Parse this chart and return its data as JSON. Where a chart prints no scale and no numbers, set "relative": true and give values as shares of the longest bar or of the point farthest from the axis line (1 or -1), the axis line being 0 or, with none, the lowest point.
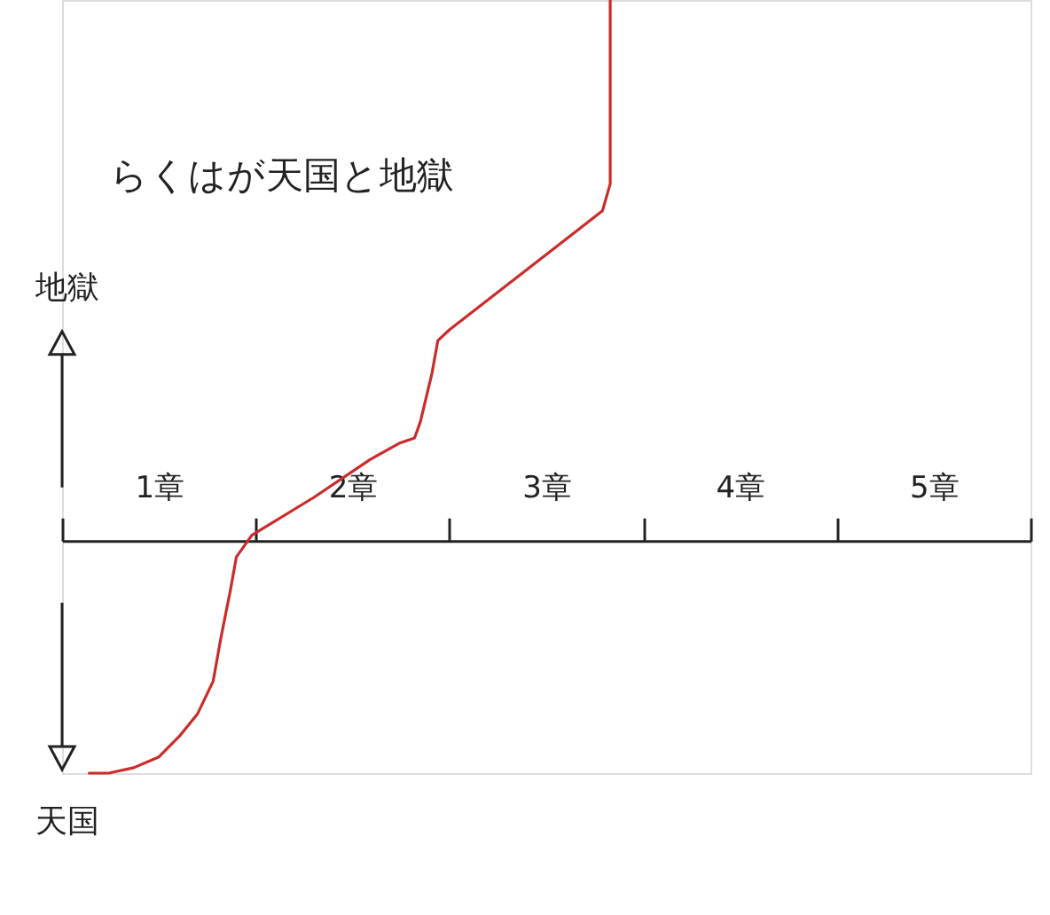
{
  "chart_data": {
    "type": "line",
    "title": "らくはが天国と地獄",
    "relative": true,
    "x": [
      0.14,
      0.24,
      0.37,
      0.5,
      0.61,
      0.7,
      0.78,
      0.82,
      0.87,
      0.9,
      0.98,
      1.3,
      1.59,
      1.74,
      1.82,
      1.85,
      1.91,
      1.94,
      2.0,
      2.79,
      2.83,
      2.83,
      2.83
    ],
    "xlim": [
      0,
      5
    ],
    "xticks": [
      {
        "value": 0,
        "label": null
      },
      {
        "value": 0.5,
        "label": "1章"
      },
      {
        "value": 1,
        "label": null
      },
      {
        "value": 1.5,
        "label": "2章"
      },
      {
        "value": 2,
        "label": null
      },
      {
        "value": 2.5,
        "label": "3章"
      },
      {
        "value": 3,
        "label": null
      },
      {
        "value": 3.5,
        "label": "4章"
      },
      {
        "value": 4,
        "label": null
      },
      {
        "value": 4.5,
        "label": "5章"
      },
      {
        "value": 5,
        "label": null
      }
    ],
    "series": [
      {
        "color": "#cc2b2b",
        "values": [
          -0.43,
          -0.43,
          -0.42,
          -0.4,
          -0.36,
          -0.32,
          -0.26,
          -0.18,
          -0.09,
          -0.03,
          0.01,
          0.08,
          0.15,
          0.18,
          0.19,
          0.22,
          0.31,
          0.37,
          0.39,
          0.61,
          0.66,
          0.83,
          1.0
        ]
      }
    ],
    "annotations": [
      "地獄",
      "天国"
    ],
    "line_style": "solid"
  }
}
